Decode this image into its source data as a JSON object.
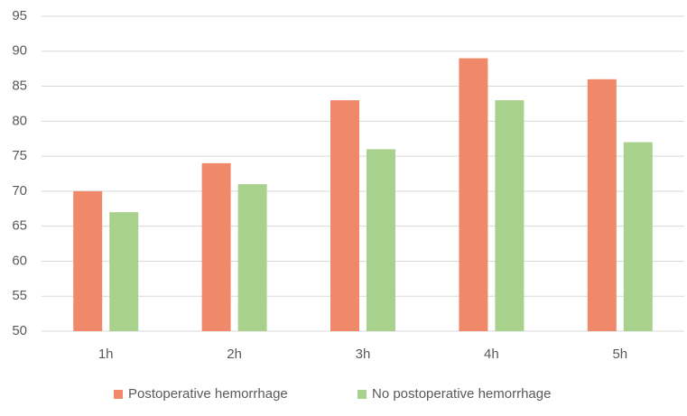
{
  "chart_data": {
    "type": "bar",
    "categories": [
      "1h",
      "2h",
      "3h",
      "4h",
      "5h"
    ],
    "series": [
      {
        "name": "Postoperative hemorrhage",
        "color": "#f0896a",
        "values": [
          70,
          74,
          83,
          89,
          86
        ]
      },
      {
        "name": "No postoperative hemorrhage",
        "color": "#a9d18e",
        "values": [
          67,
          71,
          76,
          83,
          77
        ]
      }
    ],
    "ylim": [
      50,
      95
    ],
    "yticks": [
      50,
      55,
      60,
      65,
      70,
      75,
      80,
      85,
      90,
      95
    ],
    "grid": true,
    "legend": "bottom"
  }
}
